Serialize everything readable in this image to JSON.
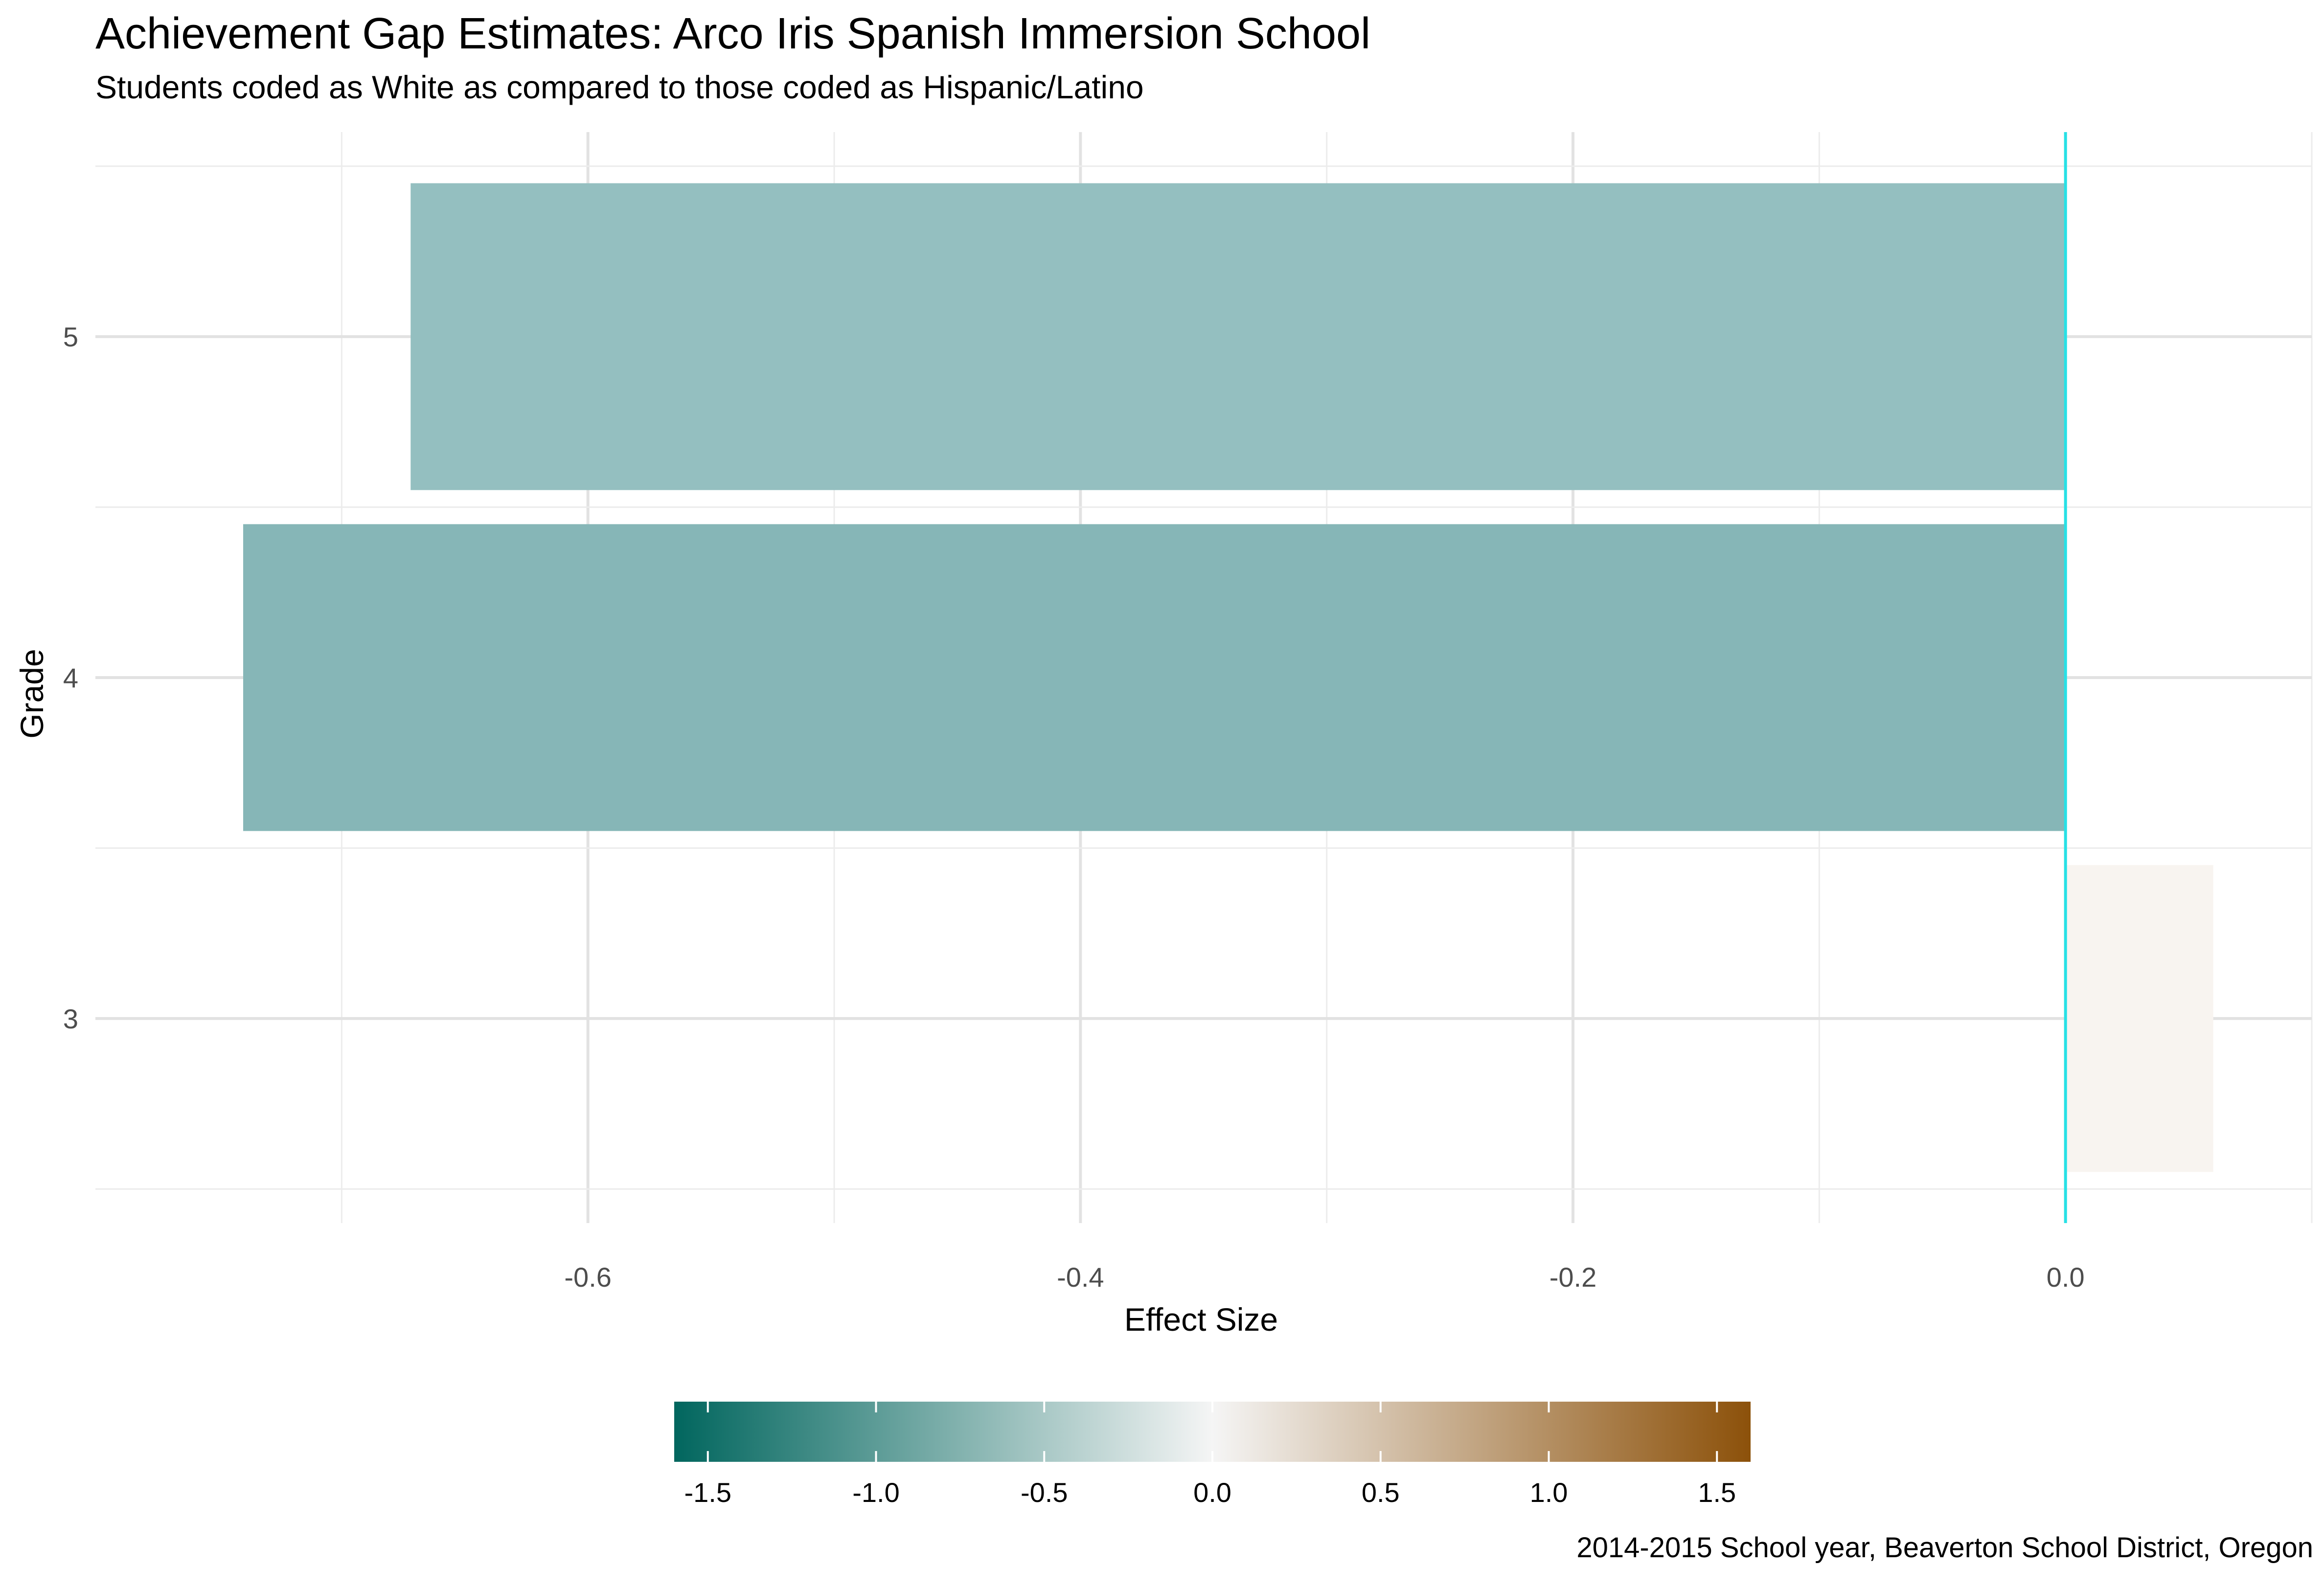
{
  "chart_data": {
    "type": "bar",
    "orientation": "horizontal",
    "title": "Achievement Gap Estimates: Arco Iris Spanish Immersion School",
    "subtitle": "Students coded as White as compared to those coded as Hispanic/Latino",
    "caption": "2014-2015 School year, Beaverton School District, Oregon",
    "xlabel": "Effect Size",
    "ylabel": "Grade",
    "categories": [
      "3",
      "4",
      "5"
    ],
    "values": [
      0.06,
      -0.74,
      -0.672
    ],
    "xlim": [
      -0.8,
      0.1
    ],
    "xticks": [
      -0.6,
      -0.4,
      -0.2,
      0.0
    ],
    "xtick_labels": [
      "-0.6",
      "-0.4",
      "-0.2",
      "0.0"
    ],
    "reference_line": {
      "x": 0.0,
      "color": "#27e1e6"
    },
    "grid": true,
    "legend": {
      "position": "bottom",
      "type": "colorbar",
      "range": [
        -1.6,
        1.6
      ],
      "ticks": [
        -1.5,
        -1.0,
        -0.5,
        0.0,
        0.5,
        1.0,
        1.5
      ],
      "tick_labels": [
        "-1.5",
        "-1.0",
        "-0.5",
        "0.0",
        "0.5",
        "1.0",
        "1.5"
      ],
      "low_color": "#01665e",
      "mid_color": "#f5f5f5",
      "high_color": "#8c510a"
    },
    "bar_colors": [
      "#f8f4f0",
      "#86b6b7",
      "#94bfc0"
    ]
  }
}
